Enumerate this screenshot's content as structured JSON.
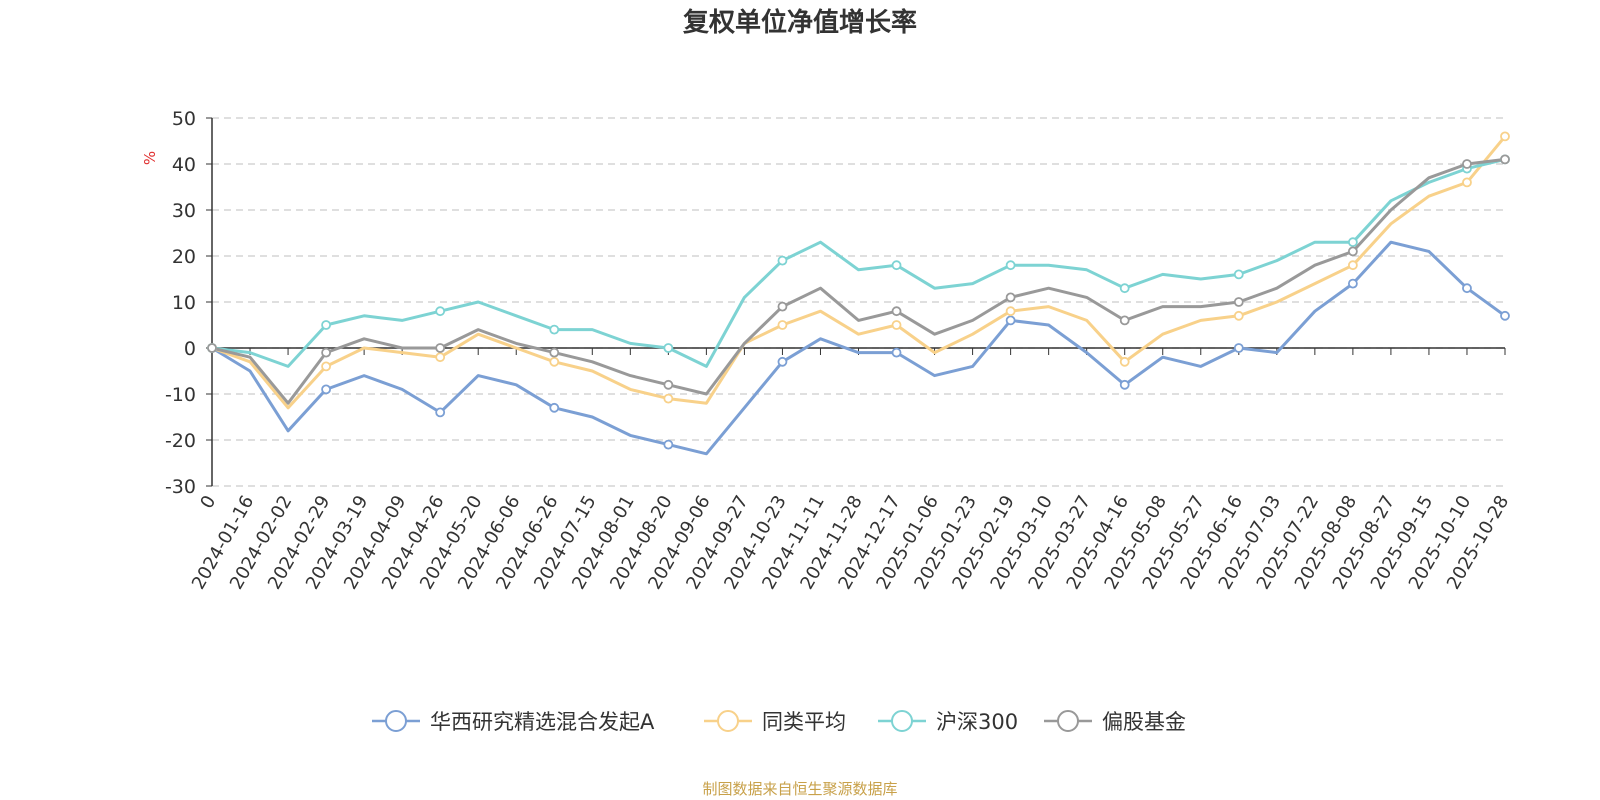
{
  "chart_data": {
    "type": "line",
    "title": "复权单位净值增长率",
    "ylabel": "%",
    "xlabel": "",
    "ylim": [
      -30,
      50
    ],
    "yticks": [
      -30,
      -20,
      -10,
      0,
      10,
      20,
      30,
      40,
      50
    ],
    "grid": true,
    "legend_position": "bottom-center",
    "x": [
      "0",
      "2024-01-16",
      "2024-02-02",
      "2024-02-29",
      "2024-03-19",
      "2024-04-09",
      "2024-04-26",
      "2024-05-20",
      "2024-06-06",
      "2024-06-26",
      "2024-07-15",
      "2024-08-01",
      "2024-08-20",
      "2024-09-06",
      "2024-09-27",
      "2024-10-23",
      "2024-11-11",
      "2024-11-28",
      "2024-12-17",
      "2025-01-06",
      "2025-01-23",
      "2025-02-19",
      "2025-03-10",
      "2025-03-27",
      "2025-04-16",
      "2025-05-08",
      "2025-05-27",
      "2025-06-16",
      "2025-07-03",
      "2025-07-22",
      "2025-08-08",
      "2025-08-27",
      "2025-09-15",
      "2025-10-10",
      "2025-10-28"
    ],
    "series": [
      {
        "name": "华西研究精选混合发起A",
        "color": "#7b9fd4",
        "values": [
          0,
          -5,
          -18,
          -9,
          -6,
          -9,
          -14,
          -6,
          -8,
          -13,
          -15,
          -19,
          -21,
          -23,
          -13,
          -3,
          2,
          -1,
          -1,
          -6,
          -4,
          6,
          5,
          -1,
          -8,
          -2,
          -4,
          0,
          -1,
          8,
          14,
          23,
          21,
          13,
          7
        ]
      },
      {
        "name": "同类平均",
        "color": "#f8d18a",
        "values": [
          0,
          -3,
          -13,
          -4,
          0,
          -1,
          -2,
          3,
          0,
          -3,
          -5,
          -9,
          -11,
          -12,
          1,
          5,
          8,
          3,
          5,
          -1,
          3,
          8,
          9,
          6,
          -3,
          3,
          6,
          7,
          10,
          14,
          18,
          27,
          33,
          36,
          46
        ]
      },
      {
        "name": "沪深300",
        "color": "#7dd3d3",
        "values": [
          0,
          -1,
          -4,
          5,
          7,
          6,
          8,
          10,
          7,
          4,
          4,
          1,
          0,
          -4,
          11,
          19,
          23,
          17,
          18,
          13,
          14,
          18,
          18,
          17,
          13,
          16,
          15,
          16,
          19,
          23,
          23,
          32,
          36,
          39,
          41
        ]
      },
      {
        "name": "偏股基金",
        "color": "#999999",
        "values": [
          0,
          -2,
          -12,
          -1,
          2,
          0,
          0,
          4,
          1,
          -1,
          -3,
          -6,
          -8,
          -10,
          1,
          9,
          13,
          6,
          8,
          3,
          6,
          11,
          13,
          11,
          6,
          9,
          9,
          10,
          13,
          18,
          21,
          30,
          37,
          40,
          41
        ]
      }
    ]
  },
  "footer": "制图数据来自恒生聚源数据库"
}
